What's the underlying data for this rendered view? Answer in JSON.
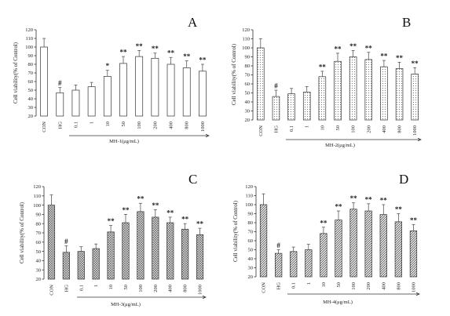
{
  "chart_data": [
    {
      "type": "bar",
      "panel_label": "A",
      "ylabel": "Cell viability(% of Control)",
      "xlabel": "MH-1(μg/mL)",
      "ylim": [
        20,
        120
      ],
      "yticks": [
        20,
        30,
        40,
        50,
        60,
        70,
        80,
        90,
        100,
        110,
        120
      ],
      "categories": [
        "CON",
        "HG",
        "0.1",
        "1",
        "10",
        "50",
        "100",
        "200",
        "400",
        "800",
        "1000"
      ],
      "values": [
        100,
        47,
        50,
        54,
        66,
        81,
        89,
        87,
        80,
        76,
        72
      ],
      "errors": [
        10,
        6,
        6,
        5,
        7,
        8,
        7,
        6,
        8,
        8,
        8
      ],
      "annotations": [
        "",
        "#",
        "",
        "",
        "*",
        "**",
        "**",
        "**",
        "**",
        "**",
        "**"
      ],
      "bar_style": "open"
    },
    {
      "type": "bar",
      "panel_label": "B",
      "ylabel": "Cell viability(% of Control)",
      "xlabel": "MH-2(μg/mL)",
      "ylim": [
        20,
        120
      ],
      "yticks": [
        20,
        30,
        40,
        50,
        60,
        70,
        80,
        90,
        100,
        110,
        120
      ],
      "categories": [
        "CON",
        "HG",
        "0.1",
        "1",
        "10",
        "50",
        "100",
        "200",
        "400",
        "800",
        "1000"
      ],
      "values": [
        100,
        46,
        49,
        51,
        68,
        85,
        90,
        87,
        79,
        77,
        71
      ],
      "errors": [
        10,
        7,
        6,
        6,
        6,
        9,
        7,
        8,
        7,
        7,
        7
      ],
      "annotations": [
        "",
        "#",
        "",
        "",
        "**",
        "**",
        "**",
        "**",
        "**",
        "**",
        "**"
      ],
      "bar_style": "dotted"
    },
    {
      "type": "bar",
      "panel_label": "C",
      "ylabel": "Cell viability(% of Control)",
      "xlabel": "MH-3(μg/mL)",
      "ylim": [
        20,
        120
      ],
      "yticks": [
        20,
        30,
        40,
        50,
        60,
        70,
        80,
        90,
        100,
        110,
        120
      ],
      "categories": [
        "CON",
        "HG",
        "0.1",
        "1",
        "10",
        "50",
        "100",
        "200",
        "400",
        "800",
        "1000"
      ],
      "values": [
        100,
        49,
        50,
        53,
        71,
        81,
        93,
        87,
        81,
        74,
        68
      ],
      "errors": [
        11,
        7,
        5,
        5,
        7,
        9,
        9,
        8,
        6,
        6,
        7
      ],
      "annotations": [
        "",
        "#",
        "",
        "",
        "**",
        "**",
        "**",
        "**",
        "**",
        "**",
        "**"
      ],
      "bar_style": "crosshatch"
    },
    {
      "type": "bar",
      "panel_label": "D",
      "ylabel": "Cell viability(% of Control)",
      "xlabel": "MH-4(μg/mL)",
      "ylim": [
        20,
        120
      ],
      "yticks": [
        20,
        30,
        40,
        50,
        60,
        70,
        80,
        90,
        100,
        110,
        120
      ],
      "categories": [
        "CON",
        "HG",
        "0.1",
        "1",
        "10",
        "50",
        "100",
        "200",
        "400",
        "800",
        "1000"
      ],
      "values": [
        100,
        46,
        48,
        50,
        68,
        83,
        95,
        93,
        89,
        81,
        71
      ],
      "errors": [
        12,
        4,
        5,
        6,
        7,
        10,
        7,
        8,
        11,
        9,
        7
      ],
      "annotations": [
        "",
        "#",
        "",
        "",
        "**",
        "**",
        "**",
        "**",
        "**",
        "**",
        "**"
      ],
      "bar_style": "diagonal"
    }
  ]
}
